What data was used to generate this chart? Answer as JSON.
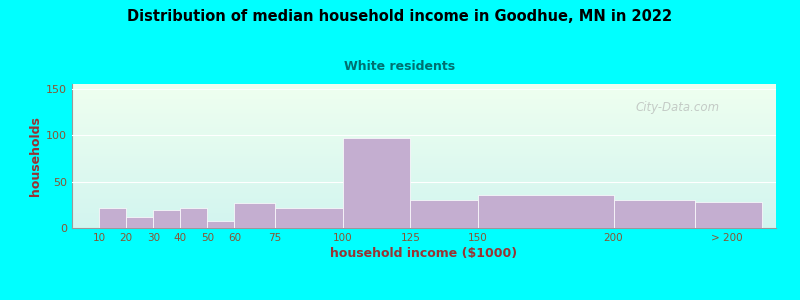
{
  "title": "Distribution of median household income in Goodhue, MN in 2022",
  "subtitle": "White residents",
  "xlabel": "household income ($1000)",
  "ylabel": "households",
  "background_color": "#00FFFF",
  "bar_color": "#c4aed0",
  "bar_edge_color": "#ffffff",
  "title_color": "#000000",
  "subtitle_color": "#007070",
  "axis_label_color": "#993333",
  "tick_label_color": "#885533",
  "categories": [
    "10",
    "20",
    "30",
    "40",
    "50",
    "60",
    "75",
    "100",
    "125",
    "150",
    "200",
    "> 200"
  ],
  "values": [
    22,
    12,
    19,
    22,
    7,
    27,
    22,
    97,
    30,
    36,
    30,
    28
  ],
  "ylim": [
    0,
    155
  ],
  "yticks": [
    0,
    50,
    100,
    150
  ],
  "watermark": "City-Data.com"
}
